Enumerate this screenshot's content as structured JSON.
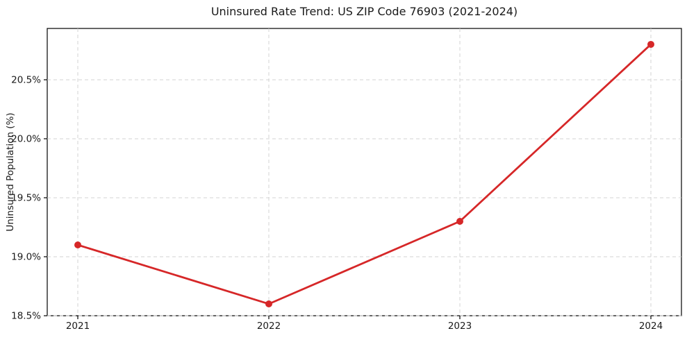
{
  "chart_data": {
    "type": "line",
    "title": "Uninsured Rate Trend: US ZIP Code 76903 (2021-2024)",
    "xlabel": "",
    "ylabel": "Uninsured Population (%)",
    "x": [
      2021,
      2022,
      2023,
      2024
    ],
    "values": [
      19.1,
      18.6,
      19.3,
      20.8
    ],
    "xtick_labels": [
      "2021",
      "2022",
      "2023",
      "2024"
    ],
    "ytick_values": [
      18.5,
      19.0,
      19.5,
      20.0,
      20.5
    ],
    "ytick_labels": [
      "18.5%",
      "19.0%",
      "19.5%",
      "20.0%",
      "20.5%"
    ],
    "xlim": [
      2020.84,
      2024.16
    ],
    "ylim": [
      18.5,
      20.935
    ],
    "grid": true,
    "grid_style": "dashed",
    "legend": "none",
    "style": {
      "line_color": "#d62728",
      "marker": "circle",
      "marker_size": 5,
      "line_width": 2.8,
      "grid_color": "#d3d3d3",
      "spine_color": "#000000",
      "text_color": "#1a1a1a",
      "background": "#ffffff"
    }
  }
}
